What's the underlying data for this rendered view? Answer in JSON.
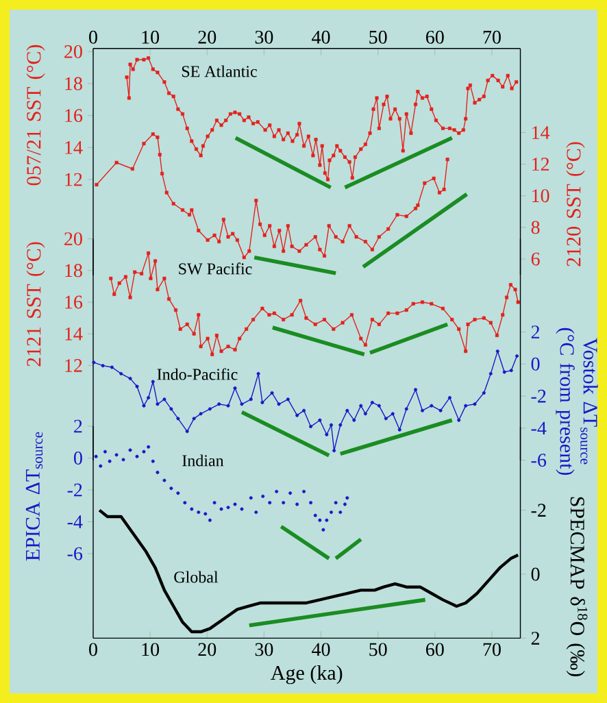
{
  "chart_data": [
    {
      "type": "line",
      "ylabel": "057/21 SST (°C)",
      "y2label": "2120 SST (°C)",
      "xlim": [
        0,
        75
      ],
      "x2lim": [
        0,
        75
      ],
      "x2ticks": [
        0,
        10,
        20,
        30,
        40,
        50,
        60,
        70
      ],
      "tick_labels": "y",
      "ylim": [
        6,
        20.2
      ],
      "yticks": [
        12,
        14,
        16,
        18,
        20
      ],
      "y2lim": [
        5,
        19.3
      ],
      "y2ticks": [
        6,
        8,
        10,
        12,
        14
      ],
      "series": [
        {
          "name": "SE Atlantic",
          "color": "#e4211c",
          "marker": "square",
          "x": [
            5.9,
            6.3,
            6.5,
            7.0,
            7.7,
            8.9,
            9.7,
            10.5,
            11.3,
            12.5,
            13.3,
            14.1,
            14.9,
            15.7,
            16.5,
            17.3,
            18.1,
            18.9,
            19.3,
            20.1,
            20.9,
            21.7,
            22.5,
            23.3,
            24.1,
            24.9,
            25.7,
            26.5,
            27.3,
            28.1,
            28.9,
            30.2,
            31.0,
            31.8,
            32.6,
            33.4,
            34.2,
            35.0,
            35.8,
            36.2,
            37.0,
            37.8,
            38.6,
            39.1,
            39.8,
            40.2,
            40.7,
            41.2,
            41.5,
            42.2,
            42.8,
            43.4,
            44.2,
            45.0,
            45.5,
            46.0,
            47.0,
            47.8,
            48.6,
            49.2,
            49.8,
            50.2,
            51.0,
            51.6,
            52.2,
            53.0,
            53.8,
            54.4,
            55.0,
            55.8,
            56.6,
            57.0,
            57.8,
            58.6,
            59.4,
            60.2,
            61.4,
            62.6,
            63.4,
            64.2,
            65.0,
            65.4,
            65.8,
            66.2,
            67.0,
            67.8,
            68.6,
            69.3,
            70.1,
            71.1,
            71.9,
            72.8,
            73.5,
            74.3
          ],
          "values": [
            18.4,
            17.1,
            19.2,
            18.9,
            19.5,
            19.5,
            19.6,
            18.9,
            18.7,
            18.1,
            17.4,
            17.2,
            16.4,
            16.1,
            15.2,
            14.4,
            13.9,
            13.5,
            14.1,
            14.7,
            15.1,
            15.7,
            15.4,
            15.7,
            16.1,
            16.2,
            16.1,
            15.7,
            15.9,
            15.5,
            15.6,
            15.1,
            15.4,
            14.7,
            15.1,
            14.5,
            14.9,
            14.4,
            14.8,
            15.5,
            14.1,
            14.7,
            13.5,
            14.5,
            12.9,
            14.1,
            12.4,
            12.0,
            13.2,
            13.5,
            14.1,
            13.8,
            13.4,
            13.1,
            12.1,
            13.4,
            13.9,
            14.2,
            14.9,
            16.4,
            17.1,
            15.2,
            16.7,
            17.2,
            15.8,
            16.4,
            15.8,
            13.8,
            16.1,
            14.9,
            16.7,
            17.5,
            17.1,
            17.2,
            16.4,
            15.7,
            15.2,
            15.2,
            15.1,
            14.9,
            15.1,
            15.8,
            17.7,
            17.9,
            16.8,
            17.0,
            17.2,
            18.2,
            18.5,
            18.2,
            17.8,
            18.5,
            17.7,
            18.1
          ]
        },
        {
          "color": "#e4211c",
          "axis": "y2",
          "marker": "square",
          "x": [
            0.6,
            4.1,
            6.9,
            8.9,
            10.5,
            11.3,
            11.7,
            12.1,
            12.9,
            14.1,
            15.7,
            16.9,
            17.3,
            18.5,
            20.1,
            21.3,
            22.1,
            22.9,
            23.7,
            24.5,
            25.3,
            26.5,
            27.4,
            28.6,
            29.3,
            30.1,
            31.0,
            31.8,
            32.7,
            33.4,
            34.2,
            34.9,
            36.2,
            37.4,
            39.0,
            39.8,
            40.6,
            41.4,
            42.6,
            43.8,
            45.0,
            46.2,
            47.8,
            49.0,
            50.2,
            51.8,
            53.4,
            55.0,
            56.6,
            57.0,
            58.2,
            59.8,
            60.8,
            61.6,
            62.2
          ],
          "values": [
            10.7,
            12.1,
            11.7,
            13.3,
            13.9,
            13.7,
            12.6,
            11.4,
            10.2,
            9.5,
            9.1,
            8.8,
            9.1,
            7.8,
            7.2,
            7.5,
            7.1,
            8.5,
            7.4,
            7.6,
            7.2,
            6.1,
            6.5,
            9.7,
            8.2,
            7.5,
            8.1,
            6.8,
            7.8,
            6.5,
            8.1,
            6.8,
            6.5,
            6.9,
            7.4,
            6.6,
            6.2,
            8.1,
            7.4,
            7.1,
            8.1,
            7.4,
            7.1,
            6.6,
            7.4,
            7.9,
            8.8,
            8.7,
            9.2,
            9.4,
            10.8,
            11.1,
            10.2,
            10.4,
            12.3
          ]
        },
        {
          "color": "#1b8c22",
          "x": [
            25.0,
            41.7
          ],
          "values": [
            14.6,
            11.5
          ]
        },
        {
          "color": "#1b8c22",
          "x": [
            44.2,
            63.0
          ],
          "values": [
            11.5,
            14.6
          ]
        },
        {
          "color": "#1b8c22",
          "axis": "y2",
          "x": [
            28.3,
            42.6
          ],
          "values": [
            6.1,
            5.1
          ]
        },
        {
          "color": "#1b8c22",
          "axis": "y2",
          "x": [
            47.4,
            65.6
          ],
          "values": [
            5.5,
            10.1
          ]
        }
      ]
    },
    {
      "type": "line",
      "ylabel": "2121 SST (°C)",
      "y2label": "Vostok ΔT$_{source}$ (°C from present)",
      "xlim": [
        0,
        75
      ],
      "tick_labels": "y",
      "ylim": [
        6,
        20
      ],
      "yticks": [
        12,
        14,
        16,
        18,
        20
      ],
      "y2lim": [
        -6,
        7.8
      ],
      "y2ticks": [
        -6,
        -4,
        -2,
        0,
        2
      ],
      "series": [
        {
          "name": "SW Pacific",
          "color": "#e4211c",
          "marker": "square",
          "x": [
            3.1,
            3.7,
            4.6,
            5.7,
            6.5,
            7.3,
            8.5,
            9.7,
            10.1,
            10.9,
            11.3,
            12.5,
            13.3,
            14.5,
            15.3,
            16.5,
            17.7,
            18.5,
            18.9,
            20.1,
            20.9,
            21.7,
            22.5,
            23.7,
            24.9,
            25.7,
            26.9,
            28.1,
            29.7,
            30.9,
            31.8,
            33.4,
            34.9,
            36.4,
            37.4,
            39.0,
            40.6,
            42.2,
            43.8,
            45.4,
            47.0,
            47.8,
            49.0,
            50.2,
            51.8,
            53.4,
            55.0,
            56.2,
            57.8,
            59.4,
            61.4,
            63.0,
            64.2,
            65.4,
            65.8,
            67.0,
            68.6,
            69.8,
            70.9,
            71.9,
            72.6,
            73.3,
            74.1,
            74.6
          ],
          "values": [
            17.5,
            16.5,
            17.2,
            17.6,
            16.3,
            17.9,
            17.8,
            19.1,
            17.5,
            18.6,
            16.8,
            17.5,
            16.2,
            15.5,
            14.3,
            14.6,
            14.0,
            15.2,
            13.2,
            13.7,
            12.7,
            13.9,
            12.9,
            13.2,
            13.0,
            13.7,
            14.3,
            14.9,
            15.6,
            15.2,
            15.3,
            14.9,
            15.2,
            16.1,
            15.0,
            14.6,
            14.9,
            14.3,
            14.7,
            15.2,
            13.7,
            13.3,
            14.9,
            14.6,
            15.3,
            15.3,
            15.5,
            15.9,
            16.0,
            15.9,
            15.6,
            14.9,
            14.3,
            12.9,
            14.6,
            14.9,
            15.0,
            14.7,
            13.9,
            15.2,
            16.3,
            17.1,
            16.8,
            16.0
          ]
        },
        {
          "name": "Indo-Pacific",
          "color": "#1818c8",
          "axis": "y2",
          "marker": "circle",
          "x": [
            0.1,
            1.7,
            3.3,
            4.9,
            6.5,
            7.7,
            8.9,
            9.7,
            10.5,
            11.3,
            12.5,
            13.7,
            14.9,
            16.5,
            17.7,
            18.9,
            20.5,
            22.1,
            23.7,
            24.9,
            26.1,
            27.7,
            29.0,
            29.7,
            31.4,
            32.6,
            34.2,
            35.8,
            37.0,
            38.2,
            39.8,
            41.0,
            41.8,
            42.3,
            43.4,
            44.6,
            45.8,
            47.0,
            47.8,
            49.0,
            50.2,
            51.4,
            52.6,
            53.8,
            55.0,
            56.6,
            57.8,
            59.4,
            61.0,
            62.6,
            64.2,
            65.4,
            67.0,
            68.6,
            69.8,
            71.0,
            72.2,
            73.4,
            74.4
          ],
          "values": [
            0.1,
            -0.1,
            -0.2,
            -0.6,
            -0.9,
            -1.4,
            -2.6,
            -2.1,
            -1.1,
            -2.5,
            -2.2,
            -2.8,
            -3.4,
            -4.2,
            -3.4,
            -3.1,
            -2.8,
            -2.5,
            -2.6,
            -1.5,
            -2.5,
            -2.2,
            -0.6,
            -2.4,
            -1.8,
            -2.5,
            -2.2,
            -3.2,
            -2.9,
            -3.9,
            -3.5,
            -4.4,
            -3.8,
            -5.4,
            -3.8,
            -2.9,
            -3.5,
            -2.6,
            -3.1,
            -2.4,
            -2.6,
            -3.4,
            -3.1,
            -4.1,
            -2.8,
            -1.6,
            -2.9,
            -2.6,
            -2.9,
            -2.1,
            -3.5,
            -2.6,
            -2.5,
            -1.8,
            -0.6,
            0.8,
            -0.5,
            -0.4,
            0.5
          ]
        },
        {
          "color": "#1b8c22",
          "x": [
            31.5,
            47.6
          ],
          "values": [
            14.4,
            12.7
          ]
        },
        {
          "color": "#1b8c22",
          "x": [
            48.6,
            62.2
          ],
          "values": [
            12.8,
            14.6
          ]
        },
        {
          "color": "#1b8c22",
          "axis": "y2",
          "x": [
            26.1,
            41.4
          ],
          "values": [
            -3.0,
            -5.7
          ]
        },
        {
          "color": "#1b8c22",
          "axis": "y2",
          "x": [
            43.4,
            63.0
          ],
          "values": [
            -5.6,
            -3.5
          ]
        }
      ]
    },
    {
      "type": "line",
      "xlabel": "Age (ka)",
      "ylabel": "EPICA ΔT$_{source}$",
      "y2label": "SPECMAP δ$^{18}$O (‰)",
      "xlim": [
        0,
        75
      ],
      "xticks": [
        0,
        10,
        20,
        30,
        40,
        50,
        60,
        70
      ],
      "ylim": [
        -11.3,
        2
      ],
      "yticks": [
        -6,
        -4,
        -2,
        0,
        2
      ],
      "y2lim": [
        2,
        -4.6
      ],
      "y2ticks": [
        -2,
        0,
        2
      ],
      "series": [
        {
          "name": "Indian",
          "type": "scatter",
          "color": "#1818c8",
          "marker": "circle",
          "x": [
            0.5,
            1.3,
            2.1,
            2.9,
            4.1,
            5.3,
            6.5,
            7.7,
            8.9,
            9.7,
            10.5,
            11.3,
            12.5,
            13.7,
            14.9,
            16.1,
            17.3,
            18.5,
            19.7,
            20.5,
            21.3,
            22.5,
            23.7,
            24.9,
            26.1,
            27.7,
            28.6,
            29.8,
            31.0,
            32.2,
            33.4,
            34.6,
            35.8,
            37.0,
            38.2,
            39.0,
            39.8,
            40.4,
            41.0,
            41.8,
            42.6,
            43.4,
            44.2,
            44.6
          ],
          "values": [
            0.1,
            -0.5,
            0.4,
            -0.2,
            0.2,
            -0.1,
            0.5,
            0.1,
            0.4,
            0.7,
            -0.2,
            -0.9,
            -1.4,
            -1.9,
            -2.2,
            -2.8,
            -3.2,
            -3.4,
            -3.5,
            -3.9,
            -2.8,
            -3.2,
            -3.1,
            -2.9,
            -3.2,
            -2.5,
            -3.4,
            -2.4,
            -2.8,
            -2.1,
            -2.8,
            -2.2,
            -2.9,
            -2.1,
            -2.8,
            -3.6,
            -3.9,
            -4.5,
            -3.9,
            -3.4,
            -2.8,
            -3.4,
            -2.9,
            -2.5
          ]
        },
        {
          "name": "Global",
          "color": "#000000",
          "axis": "y2",
          "x": [
            1.1,
            2.5,
            4.1,
            4.9,
            6.1,
            7.7,
            9.3,
            10.9,
            12.5,
            14.1,
            15.7,
            17.3,
            18.9,
            20.5,
            22.1,
            23.7,
            25.3,
            27.3,
            29.3,
            33.3,
            37.3,
            39.8,
            42.2,
            44.6,
            47.0,
            49.4,
            51.0,
            53.0,
            55.0,
            57.4,
            59.4,
            61.4,
            63.8,
            65.4,
            67.4,
            69.4,
            71.4,
            73.4,
            74.6
          ],
          "values": [
            -2.0,
            -1.8,
            -1.8,
            -1.8,
            -1.5,
            -1.1,
            -0.7,
            -0.2,
            0.5,
            1.0,
            1.5,
            1.8,
            1.8,
            1.7,
            1.5,
            1.3,
            1.1,
            1.0,
            0.9,
            0.9,
            0.9,
            0.8,
            0.7,
            0.6,
            0.5,
            0.5,
            0.4,
            0.3,
            0.4,
            0.4,
            0.6,
            0.8,
            1.0,
            0.9,
            0.6,
            0.2,
            -0.2,
            -0.5,
            -0.6
          ]
        },
        {
          "color": "#1b8c22",
          "x": [
            33.0,
            41.4
          ],
          "values": [
            -4.3,
            -6.3
          ]
        },
        {
          "color": "#1b8c22",
          "x": [
            42.6,
            47.0
          ],
          "values": [
            -6.3,
            -5.1
          ]
        },
        {
          "color": "#1b8c22",
          "axis": "y2",
          "x": [
            27.4,
            58.3
          ],
          "values": [
            1.6,
            0.8
          ]
        }
      ]
    }
  ]
}
